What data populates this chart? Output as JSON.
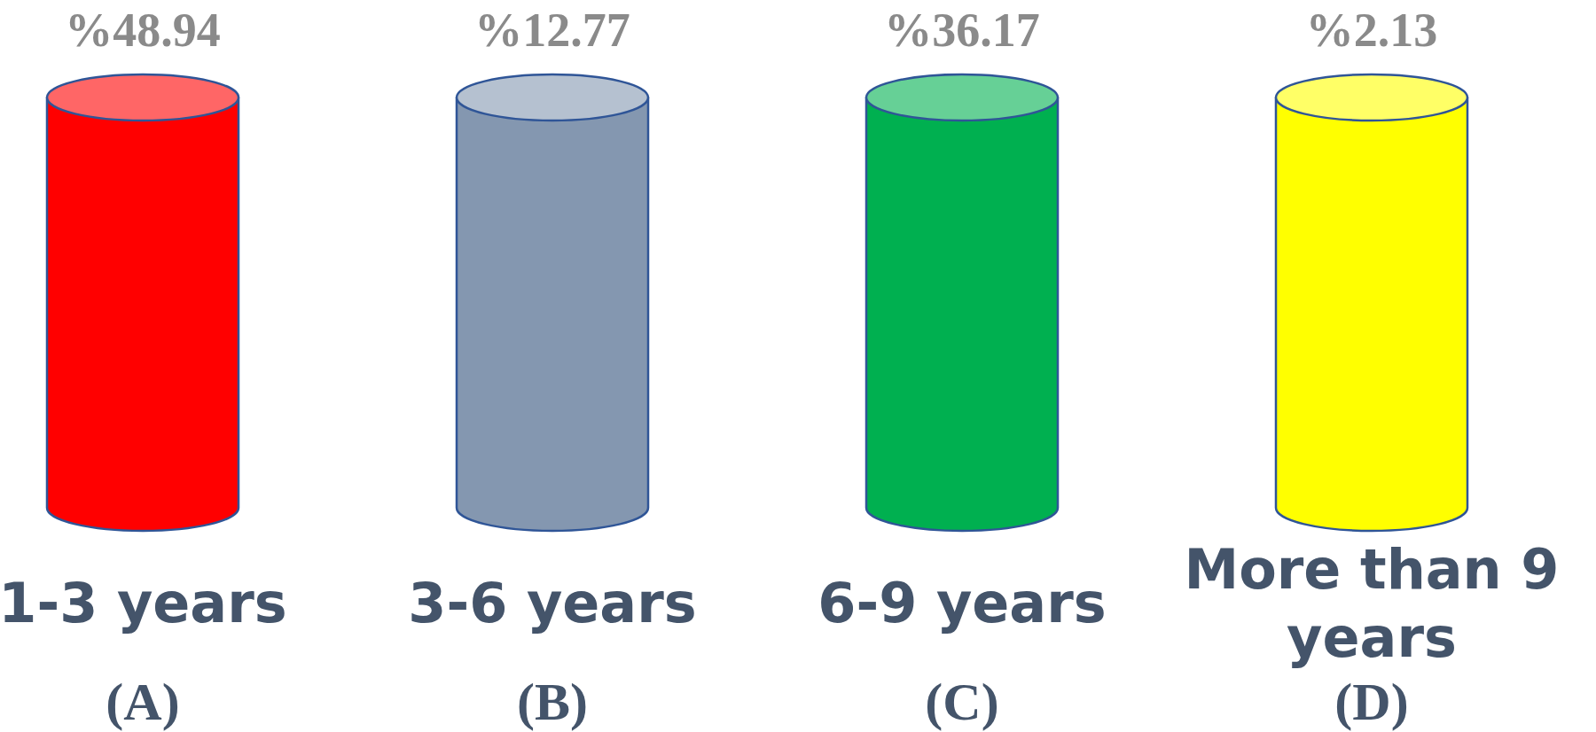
{
  "chart_data": {
    "type": "other",
    "categories": [
      "1-3 years",
      "3-6 years",
      "6-9 years",
      "More than 9 years"
    ],
    "values": [
      48.94,
      12.77,
      36.17,
      2.13
    ],
    "value_labels": [
      "%48.94",
      "%12.77",
      "%36.17",
      "%2.13"
    ],
    "colors": [
      "#ff0000",
      "#8497b0",
      "#00b050",
      "#ffff00"
    ],
    "annotations": [
      "(A)",
      "(B)",
      "(C)",
      "(D)"
    ]
  }
}
